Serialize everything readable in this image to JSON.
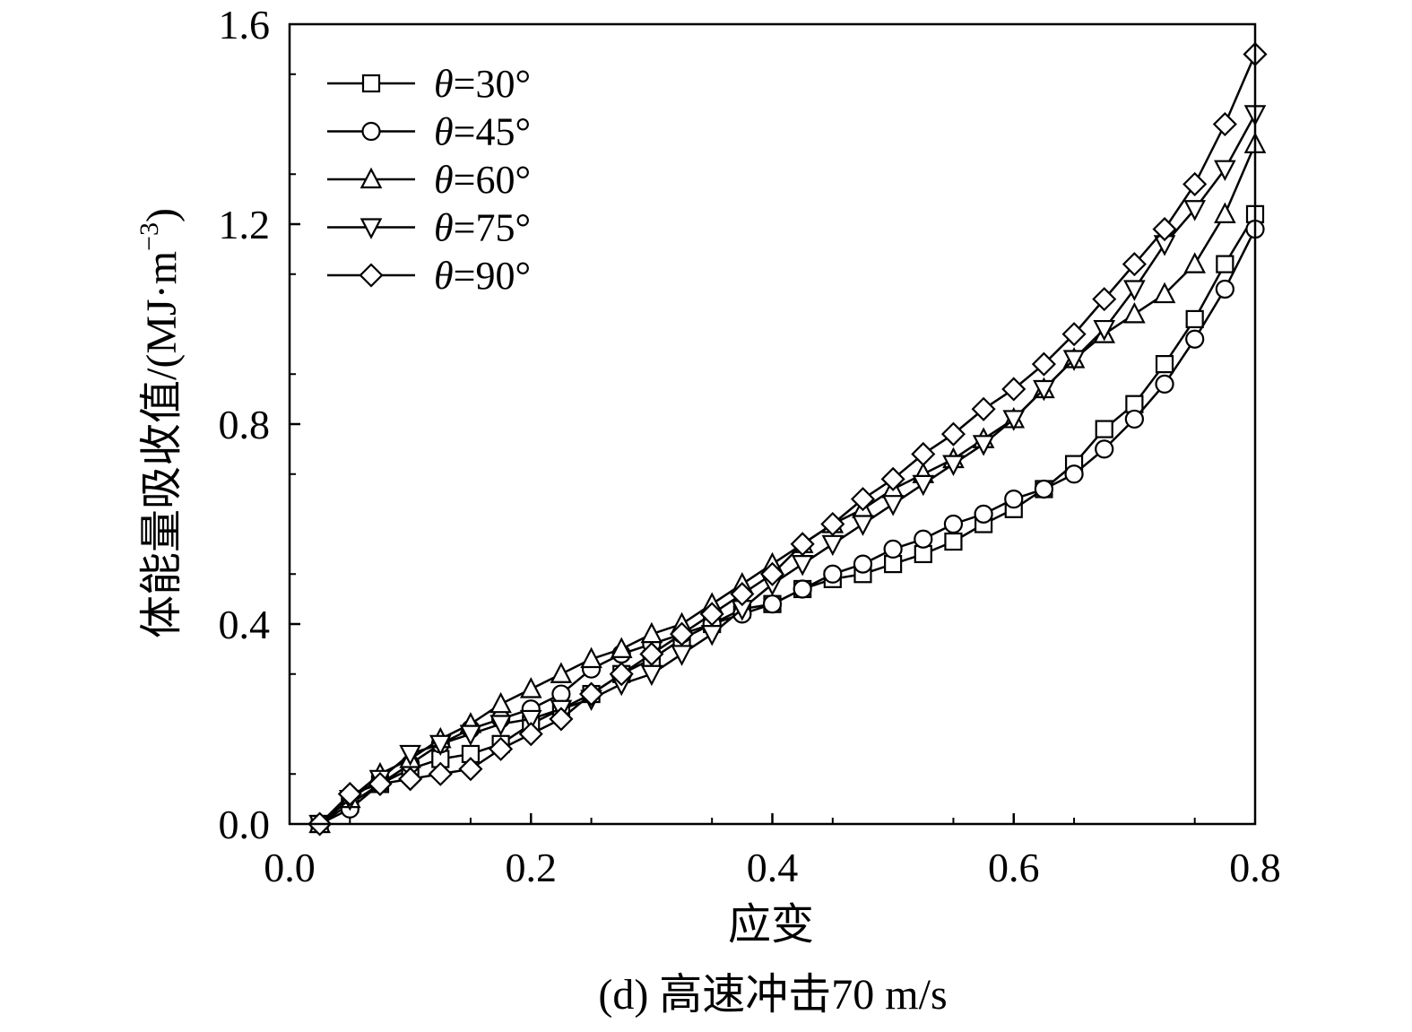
{
  "chart_data": {
    "type": "line",
    "title": "",
    "caption": "(d) 高速冲击70 m/s",
    "xlabel": "应变",
    "ylabel": "体能量吸收值/(MJ·m",
    "ylabel_sup": "−3",
    "ylabel_close": ")",
    "xlim": [
      0.0,
      0.8
    ],
    "ylim": [
      0.0,
      1.6
    ],
    "xticks": [
      "0.0",
      "0.2",
      "0.4",
      "0.6",
      "0.8"
    ],
    "yticks": [
      "0.0",
      "0.4",
      "0.8",
      "1.2",
      "1.6"
    ],
    "grid": false,
    "legend_position": "top-left",
    "x": [
      0.025,
      0.05,
      0.075,
      0.1,
      0.125,
      0.15,
      0.175,
      0.2,
      0.225,
      0.25,
      0.275,
      0.3,
      0.325,
      0.35,
      0.375,
      0.4,
      0.425,
      0.45,
      0.475,
      0.5,
      0.525,
      0.55,
      0.575,
      0.6,
      0.625,
      0.65,
      0.675,
      0.7,
      0.725,
      0.75,
      0.775,
      0.8
    ],
    "series": [
      {
        "name": "θ=30°",
        "theta": "θ",
        "rest": "=30°",
        "marker": "square",
        "values": [
          0.0,
          0.04,
          0.08,
          0.11,
          0.13,
          0.14,
          0.16,
          0.2,
          0.23,
          0.26,
          0.3,
          0.33,
          0.37,
          0.4,
          0.43,
          0.44,
          0.47,
          0.49,
          0.5,
          0.52,
          0.54,
          0.565,
          0.6,
          0.63,
          0.67,
          0.72,
          0.79,
          0.84,
          0.92,
          1.01,
          1.12,
          1.22
        ]
      },
      {
        "name": "θ=45°",
        "theta": "θ",
        "rest": "=45°",
        "marker": "circle",
        "values": [
          0.0,
          0.03,
          0.08,
          0.12,
          0.16,
          0.19,
          0.21,
          0.23,
          0.26,
          0.31,
          0.34,
          0.36,
          0.38,
          0.4,
          0.42,
          0.44,
          0.47,
          0.5,
          0.52,
          0.55,
          0.57,
          0.6,
          0.62,
          0.65,
          0.67,
          0.7,
          0.75,
          0.81,
          0.88,
          0.97,
          1.07,
          1.19
        ]
      },
      {
        "name": "θ=60°",
        "theta": "θ",
        "rest": "=60°",
        "marker": "triangle-up",
        "values": [
          0.0,
          0.05,
          0.1,
          0.13,
          0.17,
          0.2,
          0.24,
          0.27,
          0.3,
          0.33,
          0.35,
          0.38,
          0.4,
          0.44,
          0.48,
          0.52,
          0.56,
          0.6,
          0.63,
          0.67,
          0.7,
          0.73,
          0.77,
          0.81,
          0.87,
          0.93,
          0.98,
          1.02,
          1.06,
          1.12,
          1.22,
          1.36
        ]
      },
      {
        "name": "θ=75°",
        "theta": "θ",
        "rest": "=75°",
        "marker": "triangle-down",
        "values": [
          0.0,
          0.05,
          0.09,
          0.14,
          0.16,
          0.18,
          0.2,
          0.21,
          0.23,
          0.25,
          0.28,
          0.3,
          0.34,
          0.38,
          0.43,
          0.48,
          0.52,
          0.56,
          0.6,
          0.64,
          0.68,
          0.72,
          0.76,
          0.81,
          0.87,
          0.93,
          0.99,
          1.07,
          1.16,
          1.23,
          1.31,
          1.42
        ]
      },
      {
        "name": "θ=90°",
        "theta": "θ",
        "rest": "=90°",
        "marker": "diamond",
        "values": [
          0.0,
          0.06,
          0.08,
          0.09,
          0.1,
          0.11,
          0.15,
          0.18,
          0.21,
          0.26,
          0.3,
          0.34,
          0.38,
          0.42,
          0.46,
          0.5,
          0.56,
          0.6,
          0.65,
          0.69,
          0.74,
          0.78,
          0.83,
          0.87,
          0.92,
          0.98,
          1.05,
          1.12,
          1.19,
          1.28,
          1.4,
          1.54
        ]
      }
    ]
  }
}
